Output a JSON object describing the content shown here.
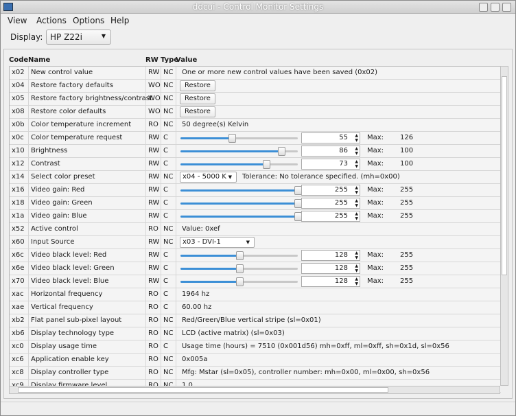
{
  "window": {
    "title": "ddcui - Control Monitor Settings"
  },
  "menu": [
    "View",
    "Actions",
    "Options",
    "Help"
  ],
  "display": {
    "label": "Display:",
    "value": "HP Z22i"
  },
  "table": {
    "headers": [
      "Code",
      "Name",
      "RW",
      "Type",
      "Value"
    ],
    "max_label": "Max:",
    "rows": [
      {
        "code": "x02",
        "name": "New control value",
        "rw": "RW",
        "type": "NC",
        "text": "One or more new control values have been saved (0x02)"
      },
      {
        "code": "x04",
        "name": "Restore factory defaults",
        "rw": "WO",
        "type": "NC",
        "button": "Restore"
      },
      {
        "code": "x05",
        "name": "Restore factory brightness/contrast",
        "rw": "WO",
        "type": "NC",
        "button": "Restore"
      },
      {
        "code": "x08",
        "name": "Restore color defaults",
        "rw": "WO",
        "type": "NC",
        "button": "Restore"
      },
      {
        "code": "x0b",
        "name": "Color temperature increment",
        "rw": "RO",
        "type": "NC",
        "text": "50 degree(s) Kelvin"
      },
      {
        "code": "x0c",
        "name": "Color temperature request",
        "rw": "RW",
        "type": "C",
        "value": 55,
        "max": 126
      },
      {
        "code": "x10",
        "name": "Brightness",
        "rw": "RW",
        "type": "C",
        "value": 86,
        "max": 100
      },
      {
        "code": "x12",
        "name": "Contrast",
        "rw": "RW",
        "type": "C",
        "value": 73,
        "max": 100
      },
      {
        "code": "x14",
        "name": "Select color preset",
        "rw": "RW",
        "type": "NC",
        "combo": "x04 - 5000 K",
        "text": "Tolerance: No tolerance specified. (mh=0x00)"
      },
      {
        "code": "x16",
        "name": "Video gain: Red",
        "rw": "RW",
        "type": "C",
        "value": 255,
        "max": 255
      },
      {
        "code": "x18",
        "name": "Video gain: Green",
        "rw": "RW",
        "type": "C",
        "value": 255,
        "max": 255
      },
      {
        "code": "x1a",
        "name": "Video gain: Blue",
        "rw": "RW",
        "type": "C",
        "value": 255,
        "max": 255
      },
      {
        "code": "x52",
        "name": "Active control",
        "rw": "RO",
        "type": "NC",
        "text": "Value: 0xef"
      },
      {
        "code": "x60",
        "name": "Input Source",
        "rw": "RW",
        "type": "NC",
        "combo": "x03 - DVI-1"
      },
      {
        "code": "x6c",
        "name": "Video black level: Red",
        "rw": "RW",
        "type": "C",
        "value": 128,
        "max": 255
      },
      {
        "code": "x6e",
        "name": "Video black level: Green",
        "rw": "RW",
        "type": "C",
        "value": 128,
        "max": 255
      },
      {
        "code": "x70",
        "name": "Video black level: Blue",
        "rw": "RW",
        "type": "C",
        "value": 128,
        "max": 255
      },
      {
        "code": "xac",
        "name": "Horizontal frequency",
        "rw": "RO",
        "type": "C",
        "text": "1964 hz"
      },
      {
        "code": "xae",
        "name": "Vertical frequency",
        "rw": "RO",
        "type": "C",
        "text": "60.00 hz"
      },
      {
        "code": "xb2",
        "name": "Flat panel sub-pixel layout",
        "rw": "RO",
        "type": "NC",
        "text": "Red/Green/Blue vertical stripe (sl=0x01)"
      },
      {
        "code": "xb6",
        "name": "Display technology type",
        "rw": "RO",
        "type": "NC",
        "text": "LCD (active matrix) (sl=0x03)"
      },
      {
        "code": "xc0",
        "name": "Display usage time",
        "rw": "RO",
        "type": "C",
        "text": "Usage time (hours) = 7510 (0x001d56) mh=0xff, ml=0xff, sh=0x1d, sl=0x56"
      },
      {
        "code": "xc6",
        "name": "Application enable key",
        "rw": "RO",
        "type": "NC",
        "text": "0x005a"
      },
      {
        "code": "xc8",
        "name": "Display controller type",
        "rw": "RO",
        "type": "NC",
        "text": "Mfg: Mstar (sl=0x05), controller number: mh=0x00, ml=0x00, sh=0x56"
      },
      {
        "code": "xc9",
        "name": "Display firmware level",
        "rw": "RO",
        "type": "NC",
        "text": "1.0"
      }
    ]
  }
}
